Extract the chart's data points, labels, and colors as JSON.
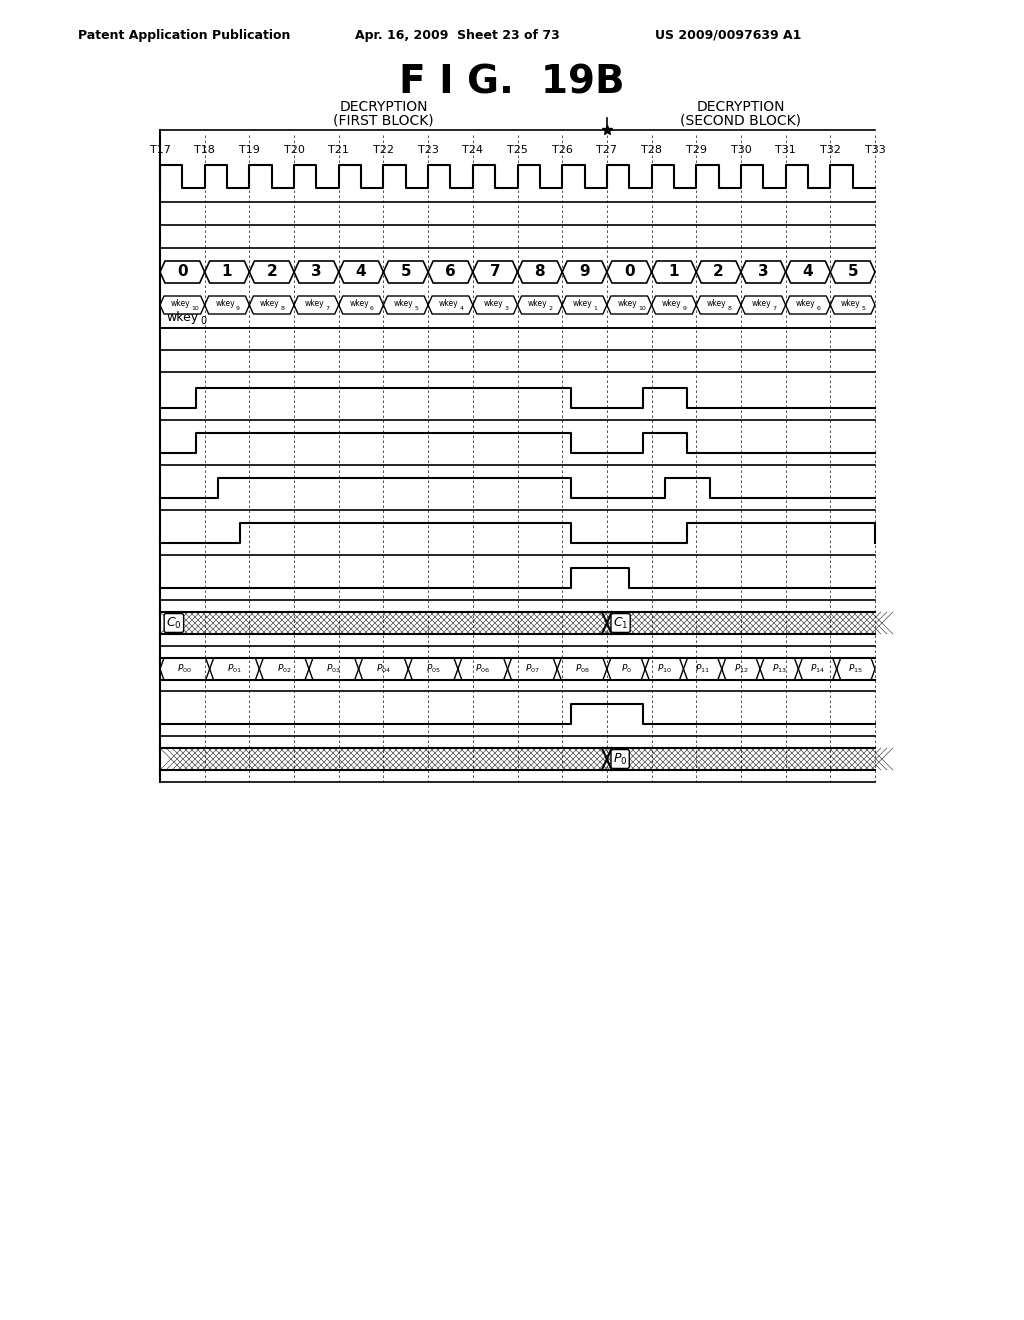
{
  "title": "F I G.  19B",
  "header_left": "Patent Application Publication",
  "header_mid": "Apr. 16, 2009  Sheet 23 of 73",
  "header_right": "US 2009/0097639 A1",
  "fig_width": 10.24,
  "fig_height": 13.2,
  "time_labels": [
    "T17",
    "T18",
    "T19",
    "T20",
    "T21",
    "T22",
    "T23",
    "T24",
    "T25",
    "T26",
    "T27",
    "T28",
    "T29",
    "T30",
    "T31",
    "T32",
    "T33"
  ],
  "round_labels": [
    "0",
    "1",
    "2",
    "3",
    "4",
    "5",
    "6",
    "7",
    "8",
    "9",
    "0",
    "1",
    "2",
    "3",
    "4",
    "5"
  ],
  "wkey_subs": [
    "10",
    "9",
    "8",
    "7",
    "6",
    "5",
    "4",
    "3",
    "2",
    "1",
    "10",
    "9",
    "8",
    "7",
    "6",
    "5"
  ],
  "background": "#ffffff"
}
